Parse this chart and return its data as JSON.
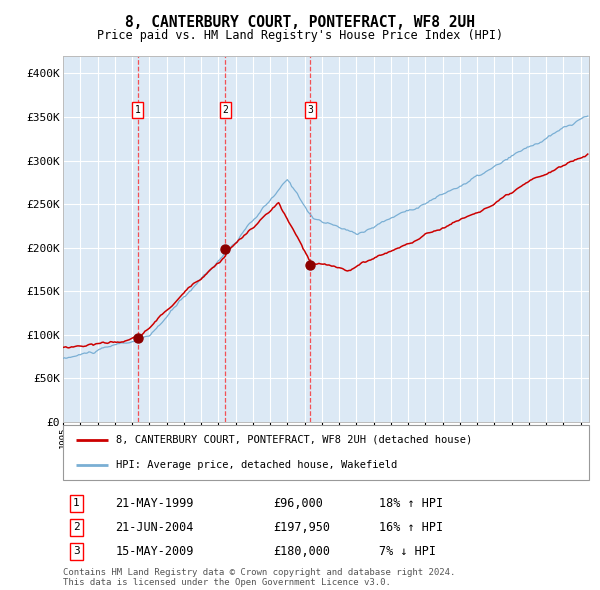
{
  "title": "8, CANTERBURY COURT, PONTEFRACT, WF8 2UH",
  "subtitle": "Price paid vs. HM Land Registry's House Price Index (HPI)",
  "background_color": "#dce9f5",
  "hpi_color": "#7aafd4",
  "price_color": "#cc0000",
  "ylim": [
    0,
    420000
  ],
  "yticks": [
    0,
    50000,
    100000,
    150000,
    200000,
    250000,
    300000,
    350000,
    400000
  ],
  "sale_prices": [
    96000,
    197950,
    180000
  ],
  "sale_labels": [
    "1",
    "2",
    "3"
  ],
  "sale_hpi_pct": [
    "18% ↑ HPI",
    "16% ↑ HPI",
    "7% ↓ HPI"
  ],
  "sale_date_strs": [
    "21-MAY-1999",
    "21-JUN-2004",
    "15-MAY-2009"
  ],
  "sale_price_strs": [
    "£96,000",
    "£197,950",
    "£180,000"
  ],
  "legend_line1": "8, CANTERBURY COURT, PONTEFRACT, WF8 2UH (detached house)",
  "legend_line2": "HPI: Average price, detached house, Wakefield",
  "footer": "Contains HM Land Registry data © Crown copyright and database right 2024.\nThis data is licensed under the Open Government Licence v3.0."
}
